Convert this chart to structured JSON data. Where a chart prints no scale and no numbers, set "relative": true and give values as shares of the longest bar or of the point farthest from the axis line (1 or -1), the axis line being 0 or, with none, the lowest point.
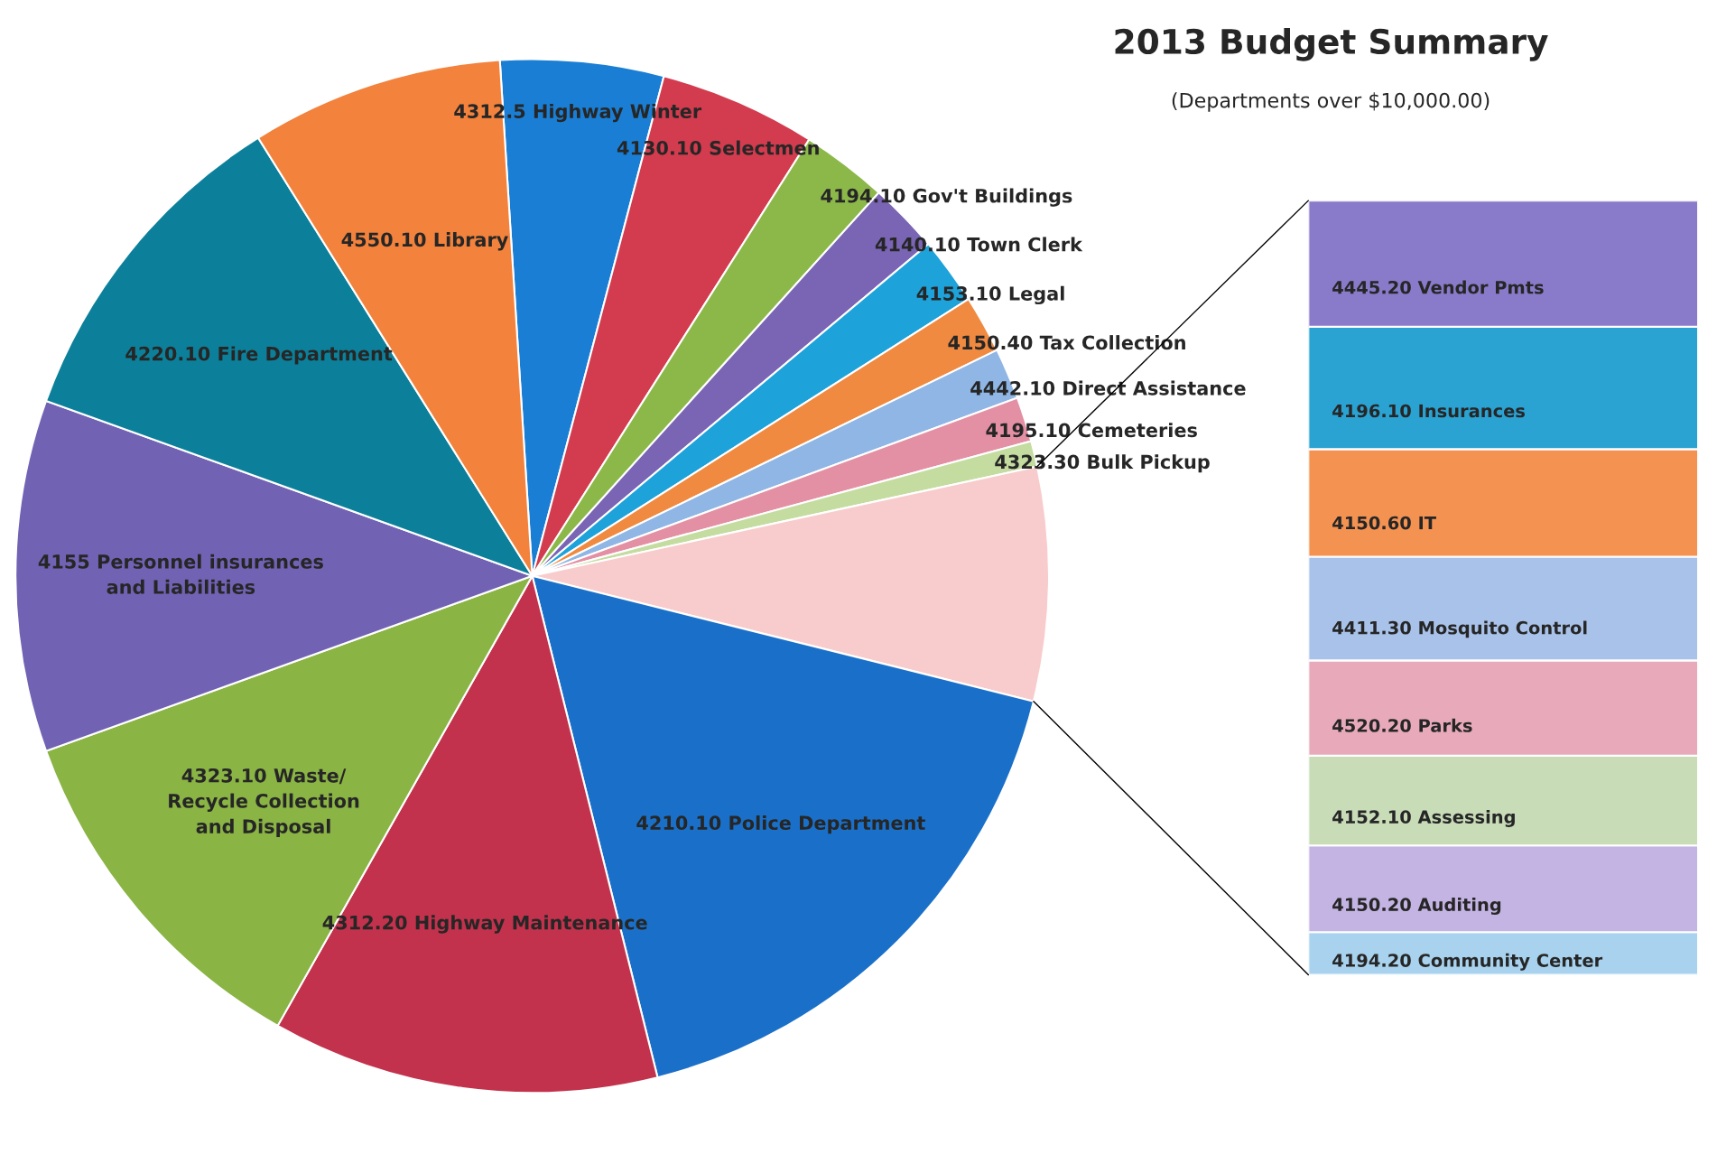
{
  "chart_data": [
    {
      "type": "pie",
      "title": "2013 Budget Summary",
      "subtitle": "(Departments over $10,000.00)",
      "categories": [
        "4312.5 Highway Winter",
        "4130.10 Selectmen",
        "4194.10 Gov't Buildings",
        "4140.10 Town Clerk",
        "4153.10 Legal",
        "4150.40 Tax Collection",
        "4442.10 Direct Assistance",
        "4195.10 Cemeteries",
        "4323.30 Bulk Pickup",
        null,
        "4210.10 Police Department",
        "4312.20 Highway Maintenance",
        "4323.10 Waste/\nRecycle Collection\nand Disposal",
        "4155 Personnel insurances\nand Liabilities",
        "4220.10 Fire Department",
        "4550.10 Library"
      ],
      "values": [
        5.1,
        4.9,
        2.7,
        2.2,
        2.1,
        1.8,
        1.6,
        1.4,
        0.8,
        7.3,
        17.2,
        12.1,
        11.3,
        11.0,
        10.6,
        7.9
      ],
      "colors": [
        "#1a7fd4",
        "#d23c4e",
        "#8cb84a",
        "#7a64b4",
        "#1ea2da",
        "#f08a40",
        "#8fb6e4",
        "#e490a4",
        "#c4dca0",
        "#f8cccc",
        "#1a70c8",
        "#c3324c",
        "#8ab444",
        "#7262b4",
        "#0c809a",
        "#f2823c"
      ]
    },
    {
      "type": "bar",
      "stacked": true,
      "relative": true,
      "categories": [
        null
      ],
      "series": [
        {
          "name": "4194.20 Community Center",
          "color": "#a8d2ee",
          "values": [
            0.055
          ]
        },
        {
          "name": "4150.20 Auditing",
          "color": "#c4b4e4",
          "values": [
            0.112
          ]
        },
        {
          "name": "4152.10 Assessing",
          "color": "#c8dcb8",
          "values": [
            0.116
          ]
        },
        {
          "name": "4520.20 Parks",
          "color": "#e8aabb",
          "values": [
            0.123
          ]
        },
        {
          "name": "4411.30 Mosquito Control",
          "color": "#a8c2ea",
          "values": [
            0.134
          ]
        },
        {
          "name": "4150.60 IT",
          "color": "#f49252",
          "values": [
            0.139
          ]
        },
        {
          "name": "4196.10 Insurances",
          "color": "#2aa2d2",
          "values": [
            0.158
          ]
        },
        {
          "name": "4445.20 Vendor Pmts",
          "color": "#8a7aca",
          "values": [
            0.163
          ]
        }
      ]
    }
  ]
}
